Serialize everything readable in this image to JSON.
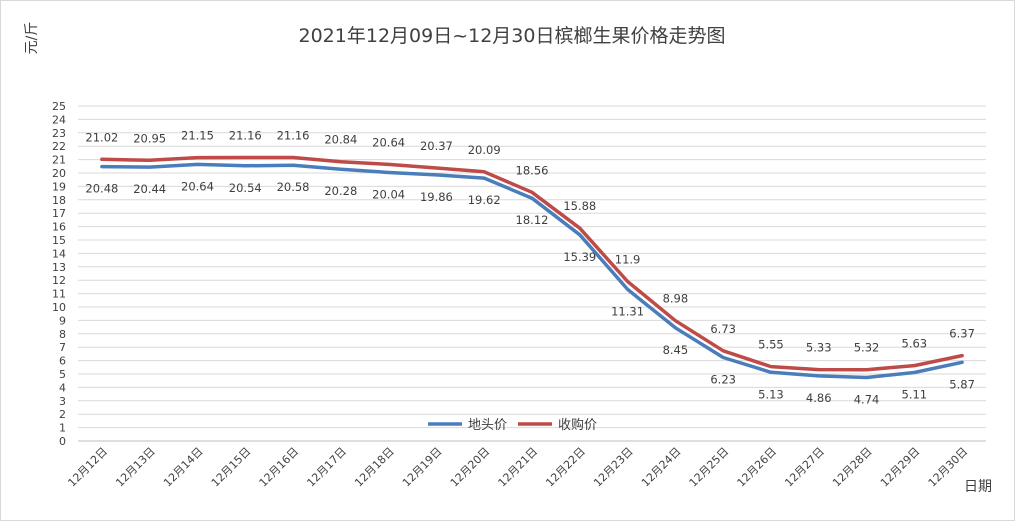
{
  "chart_data": {
    "type": "line",
    "title": "2021年12月09日~12月30日槟榔生果价格走势图",
    "ylabel": "元/斤",
    "xlabel": "日期",
    "categories": [
      "12月12日",
      "12月13日",
      "12月14日",
      "12月15日",
      "12月16日",
      "12月17日",
      "12月18日",
      "12月19日",
      "12月20日",
      "12月21日",
      "12月22日",
      "12月23日",
      "12月24日",
      "12月25日",
      "12月26日",
      "12月27日",
      "12月28日",
      "12月29日",
      "12月30日"
    ],
    "ylim": [
      0,
      25
    ],
    "ytick_step": 1,
    "grid": true,
    "legend_position": "bottom-center",
    "series": [
      {
        "name": "地头价",
        "color": "#4a7ebb",
        "label_position": "below",
        "values": [
          20.48,
          20.44,
          20.64,
          20.54,
          20.58,
          20.28,
          20.04,
          19.86,
          19.62,
          18.12,
          15.39,
          11.31,
          8.45,
          6.23,
          5.13,
          4.86,
          4.74,
          5.11,
          5.87
        ],
        "labels": [
          "20.48",
          "20.44",
          "20.64",
          "20.54",
          "20.58",
          "20.28",
          "20.04",
          "19.86",
          "19.62",
          "18.12",
          "15.39",
          "11.31",
          "8.45",
          "6.23",
          "5.13",
          "4.86",
          "4.74",
          "5.11",
          "5.87"
        ]
      },
      {
        "name": "收购价",
        "color": "#be4b48",
        "label_position": "above",
        "values": [
          21.02,
          20.95,
          21.15,
          21.16,
          21.16,
          20.84,
          20.64,
          20.37,
          20.09,
          18.56,
          15.88,
          11.9,
          8.98,
          6.73,
          5.55,
          5.33,
          5.32,
          5.63,
          6.37
        ],
        "labels": [
          "21.02",
          "20.95",
          "21.15",
          "21.16",
          "21.16",
          "20.84",
          "20.64",
          "20.37",
          "20.09",
          "18.56",
          "15.88",
          "11.9",
          "8.98",
          "6.73",
          "5.55",
          "5.33",
          "5.32",
          "5.63",
          "6.37"
        ]
      }
    ]
  }
}
